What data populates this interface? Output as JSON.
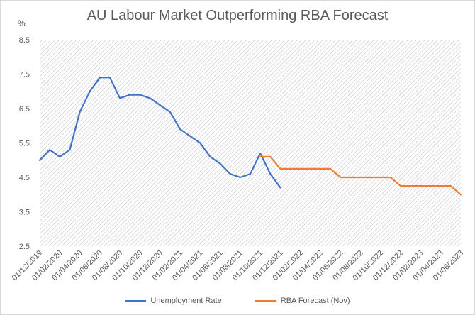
{
  "chart_data": {
    "type": "line",
    "title": "AU Labour Market Outperforming RBA Forecast",
    "ylabel": "%",
    "xlabel": "",
    "ylim": [
      2.5,
      8.5
    ],
    "yticks": [
      "8.5",
      "7.5",
      "6.5",
      "5.5",
      "4.5",
      "3.5",
      "2.5"
    ],
    "xticks": [
      "01/12/2019",
      "01/02/2020",
      "01/04/2020",
      "01/06/2020",
      "01/08/2020",
      "01/10/2020",
      "01/12/2020",
      "01/02/2021",
      "01/04/2021",
      "01/06/2021",
      "01/08/2021",
      "01/10/2021",
      "01/12/2021",
      "01/02/2022",
      "01/04/2022",
      "01/06/2022",
      "01/08/2022",
      "01/10/2022",
      "01/12/2022",
      "01/02/2023",
      "01/04/2023",
      "01/06/2023"
    ],
    "grid": "diagonal hatch background",
    "legend_position": "bottom",
    "series": [
      {
        "name": "Unemployment Rate",
        "color": "#4472c4",
        "points": [
          [
            "01/12/2019",
            5.0
          ],
          [
            "01/01/2020",
            5.3
          ],
          [
            "01/02/2020",
            5.1
          ],
          [
            "01/03/2020",
            5.3
          ],
          [
            "01/04/2020",
            6.4
          ],
          [
            "01/05/2020",
            7.0
          ],
          [
            "01/06/2020",
            7.4
          ],
          [
            "01/07/2020",
            7.4
          ],
          [
            "01/08/2020",
            6.8
          ],
          [
            "01/09/2020",
            6.9
          ],
          [
            "01/10/2020",
            6.9
          ],
          [
            "01/11/2020",
            6.8
          ],
          [
            "01/12/2020",
            6.6
          ],
          [
            "01/01/2021",
            6.4
          ],
          [
            "01/02/2021",
            5.9
          ],
          [
            "01/03/2021",
            5.7
          ],
          [
            "01/04/2021",
            5.5
          ],
          [
            "01/05/2021",
            5.1
          ],
          [
            "01/06/2021",
            4.9
          ],
          [
            "01/07/2021",
            4.6
          ],
          [
            "01/08/2021",
            4.5
          ],
          [
            "01/09/2021",
            4.6
          ],
          [
            "01/10/2021",
            5.2
          ],
          [
            "01/11/2021",
            4.6
          ],
          [
            "01/12/2021",
            4.2
          ]
        ]
      },
      {
        "name": "RBA Forecast (Nov)",
        "color": "#ed7d31",
        "points": [
          [
            "01/10/2021",
            5.1
          ],
          [
            "01/11/2021",
            5.1
          ],
          [
            "01/12/2021",
            4.75
          ],
          [
            "01/01/2022",
            4.75
          ],
          [
            "01/02/2022",
            4.75
          ],
          [
            "01/03/2022",
            4.75
          ],
          [
            "01/04/2022",
            4.75
          ],
          [
            "01/05/2022",
            4.75
          ],
          [
            "01/06/2022",
            4.5
          ],
          [
            "01/07/2022",
            4.5
          ],
          [
            "01/08/2022",
            4.5
          ],
          [
            "01/09/2022",
            4.5
          ],
          [
            "01/10/2022",
            4.5
          ],
          [
            "01/11/2022",
            4.5
          ],
          [
            "01/12/2022",
            4.25
          ],
          [
            "01/01/2023",
            4.25
          ],
          [
            "01/02/2023",
            4.25
          ],
          [
            "01/03/2023",
            4.25
          ],
          [
            "01/04/2023",
            4.25
          ],
          [
            "01/05/2023",
            4.25
          ],
          [
            "01/06/2023",
            4.0
          ]
        ]
      }
    ]
  }
}
